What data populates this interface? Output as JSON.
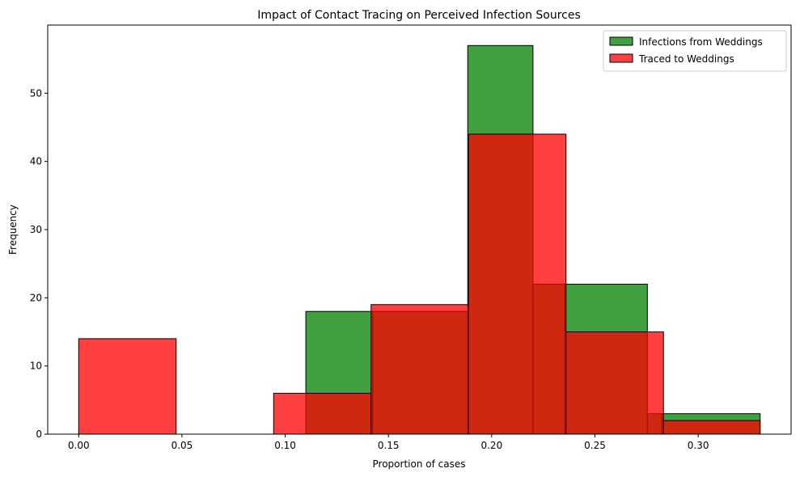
{
  "chart_data": {
    "type": "bar",
    "title": "Impact of Contact Tracing on Perceived Infection Sources",
    "xlabel": "Proportion of cases",
    "ylabel": "Frequency",
    "xlim": [
      -0.015,
      0.345
    ],
    "ylim": [
      0,
      60
    ],
    "xticks": [
      0.0,
      0.05,
      0.1,
      0.15,
      0.2,
      0.25,
      0.3
    ],
    "xtick_labels": [
      "0.00",
      "0.05",
      "0.10",
      "0.15",
      "0.20",
      "0.25",
      "0.30"
    ],
    "yticks": [
      0,
      10,
      20,
      30,
      40,
      50
    ],
    "ytick_labels": [
      "0",
      "10",
      "20",
      "30",
      "40",
      "50"
    ],
    "grid": false,
    "legend_position": "top-right",
    "series": [
      {
        "name": "Infections from Weddings",
        "color": "#008000",
        "opacity": 0.75,
        "bin_edges": [
          0.11,
          0.1424,
          0.1884,
          0.22,
          0.2354,
          0.2754,
          0.2824,
          0.33
        ],
        "values": [
          18,
          18,
          57,
          22,
          22,
          3,
          3
        ]
      },
      {
        "name": "Traced to Weddings",
        "color": "#ff0000",
        "opacity": 0.75,
        "bin_edges": [
          0.0,
          0.0472,
          0.0944,
          0.1416,
          0.1888,
          0.236,
          0.2832,
          0.33
        ],
        "values": [
          14,
          0,
          6,
          19,
          44,
          15,
          2
        ]
      }
    ]
  }
}
